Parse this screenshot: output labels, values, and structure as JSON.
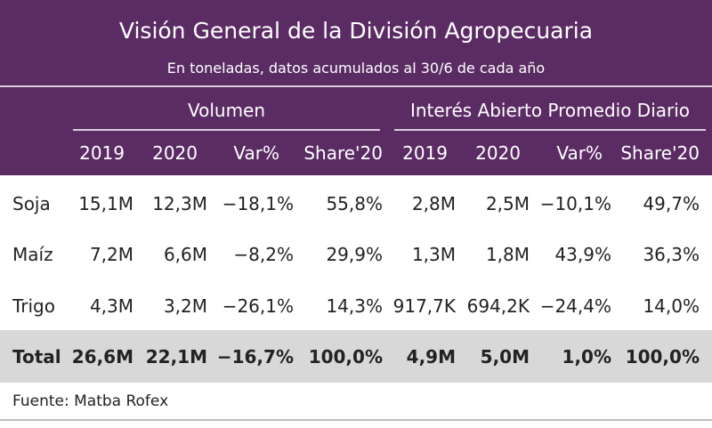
{
  "title": "Visión General de la División Agropecuaria",
  "subtitle": "En toneladas, datos acumulados al 30/6 de cada año",
  "groups": {
    "volumen": "Volumen",
    "interes": "Interés Abierto Promedio Diario"
  },
  "columns": [
    "2019",
    "2020",
    "Var%",
    "Share'20",
    "2019",
    "2020",
    "Var%",
    "Share'20"
  ],
  "rows": [
    {
      "label": "Soja",
      "values": [
        "15,1M",
        "12,3M",
        "−18,1%",
        "55,8%",
        "2,8M",
        "2,5M",
        "−10,1%",
        "49,7%"
      ]
    },
    {
      "label": "Maíz",
      "values": [
        "7,2M",
        "6,6M",
        "−8,2%",
        "29,9%",
        "1,3M",
        "1,8M",
        "43,9%",
        "36,3%"
      ]
    },
    {
      "label": "Trigo",
      "values": [
        "4,3M",
        "3,2M",
        "−26,1%",
        "14,3%",
        "917,7K",
        "694,2K",
        "−24,4%",
        "14,0%"
      ]
    }
  ],
  "total": {
    "label": "Total",
    "values": [
      "26,6M",
      "22,1M",
      "−16,7%",
      "100,0%",
      "4,9M",
      "5,0M",
      "1,0%",
      "100,0%"
    ]
  },
  "footer": "Fuente: Matba Rofex"
}
